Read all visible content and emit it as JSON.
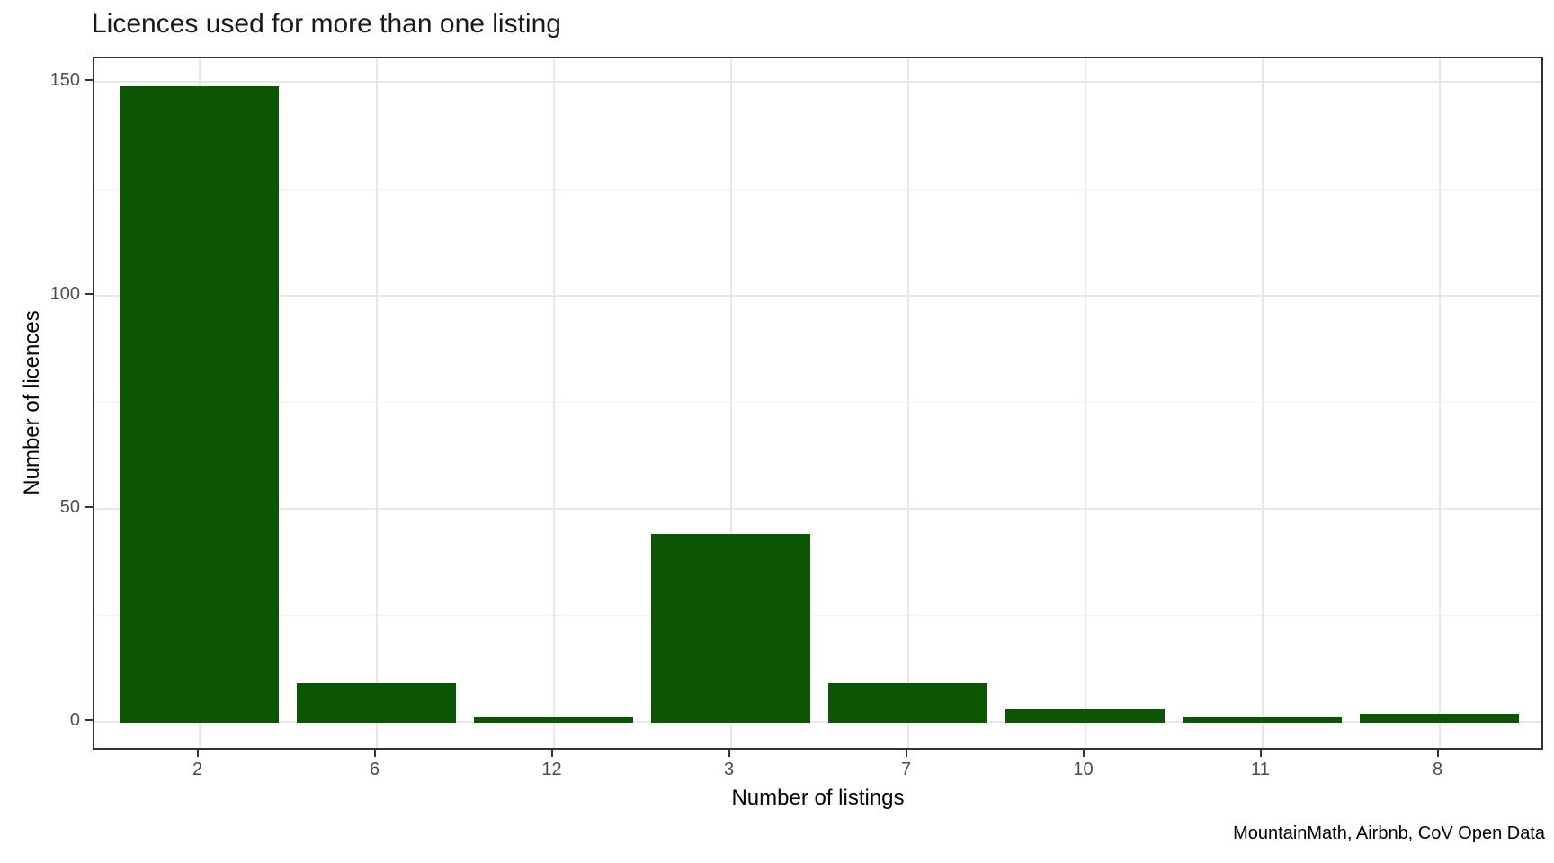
{
  "page": {
    "title": "Licences used for more than one listing",
    "caption": "MountainMath, Airbnb, CoV Open Data"
  },
  "chart_data": {
    "type": "bar",
    "title": "Licences used for more than one listing",
    "xlabel": "Number of listings",
    "ylabel": "Number of licences",
    "categories": [
      "2",
      "6",
      "12",
      "3",
      "7",
      "10",
      "11",
      "8"
    ],
    "values": [
      149,
      9,
      1,
      44,
      9,
      3,
      1,
      2
    ],
    "y_major_ticks": [
      0,
      50,
      100,
      150
    ],
    "y_minor_gridlines": [
      25,
      75,
      125
    ],
    "ylim": [
      -7.5,
      156.5
    ],
    "grid": "horizontal major+minor, vertical major at category centers",
    "legend_position": "none",
    "caption": "MountainMath, Airbnb, CoV Open Data"
  },
  "colors": {
    "bar": "#0c5603",
    "panel_border": "#333333",
    "grid_major": "#e8e8e8",
    "grid_minor": "#f2f2f2",
    "tick_label": "#4d4d4d",
    "axis_title": "#000000",
    "title": "#1a1a1a",
    "background": "#ffffff"
  }
}
